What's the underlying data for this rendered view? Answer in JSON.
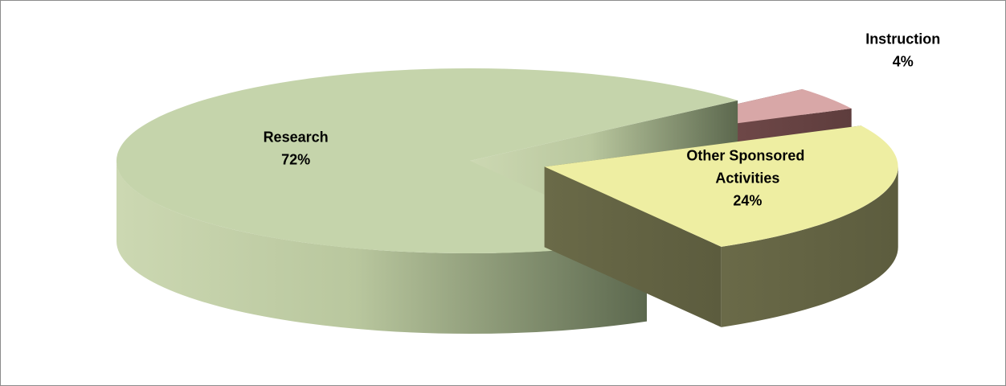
{
  "chart_data": {
    "type": "pie",
    "categories": [
      "Research",
      "Instruction",
      "Other Sponsored Activities"
    ],
    "values": [
      72,
      4,
      24
    ],
    "value_labels": [
      "72%",
      "4%",
      "24%"
    ],
    "colors": [
      "#c5d4ab",
      "#d8a7a7",
      "#eeeea2"
    ]
  }
}
